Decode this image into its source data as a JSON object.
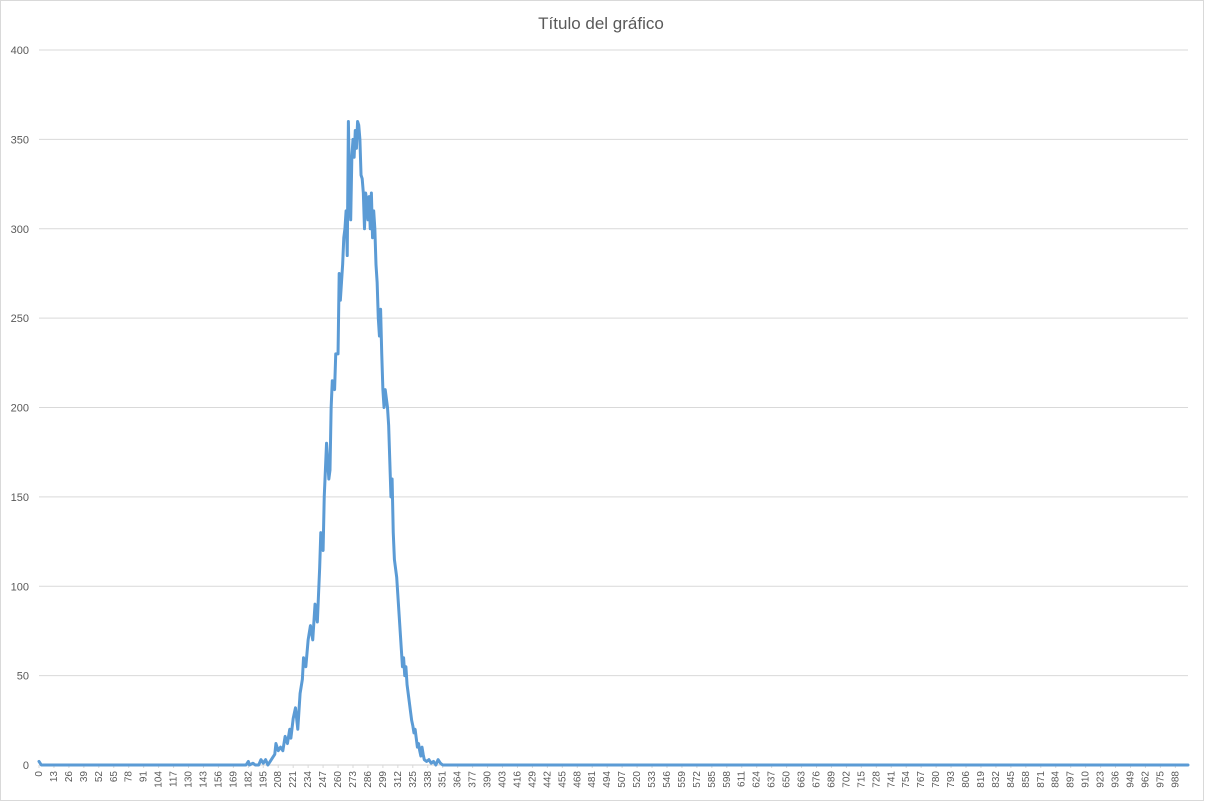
{
  "chart_data": {
    "type": "line",
    "title": "Título del gráfico",
    "xlabel": "",
    "ylabel": "",
    "ylim": [
      0,
      400
    ],
    "yticks": [
      0,
      50,
      100,
      150,
      200,
      250,
      300,
      350,
      400
    ],
    "grid": true,
    "legend": "none",
    "x_range": [
      0,
      999
    ],
    "x_tick_step": 13,
    "x_tick_labels": [
      "0",
      "13",
      "26",
      "39",
      "52",
      "65",
      "78",
      "91",
      "104",
      "117",
      "130",
      "143",
      "156",
      "169",
      "182",
      "195",
      "208",
      "221",
      "234",
      "247",
      "260",
      "273",
      "286",
      "299",
      "312",
      "325",
      "338",
      "351",
      "364",
      "377",
      "390",
      "403",
      "416",
      "429",
      "442",
      "455",
      "468",
      "481",
      "494",
      "507",
      "520",
      "533",
      "546",
      "559",
      "572",
      "585",
      "598",
      "611",
      "624",
      "637",
      "650",
      "663",
      "676",
      "689",
      "702",
      "715",
      "728",
      "741",
      "754",
      "767",
      "780",
      "793",
      "806",
      "819",
      "832",
      "845",
      "858",
      "871",
      "884",
      "897",
      "910",
      "923",
      "936",
      "949",
      "962",
      "975",
      "988"
    ],
    "series_color": "#5b9bd5",
    "gridline_color": "#d9d9d9",
    "series": [
      {
        "points": [
          [
            0,
            2
          ],
          [
            2,
            0
          ],
          [
            180,
            0
          ],
          [
            182,
            2
          ],
          [
            183,
            0
          ],
          [
            186,
            1
          ],
          [
            188,
            0
          ],
          [
            191,
            0
          ],
          [
            193,
            3
          ],
          [
            195,
            1
          ],
          [
            197,
            3
          ],
          [
            199,
            0
          ],
          [
            201,
            2
          ],
          [
            203,
            4
          ],
          [
            205,
            6
          ],
          [
            206,
            12
          ],
          [
            208,
            8
          ],
          [
            210,
            10
          ],
          [
            212,
            8
          ],
          [
            214,
            16
          ],
          [
            216,
            12
          ],
          [
            218,
            20
          ],
          [
            219,
            15
          ],
          [
            221,
            26
          ],
          [
            223,
            32
          ],
          [
            225,
            20
          ],
          [
            227,
            40
          ],
          [
            229,
            48
          ],
          [
            230,
            60
          ],
          [
            232,
            55
          ],
          [
            234,
            70
          ],
          [
            236,
            78
          ],
          [
            238,
            70
          ],
          [
            240,
            90
          ],
          [
            242,
            80
          ],
          [
            244,
            110
          ],
          [
            245,
            130
          ],
          [
            247,
            120
          ],
          [
            248,
            150
          ],
          [
            250,
            180
          ],
          [
            252,
            160
          ],
          [
            253,
            165
          ],
          [
            254,
            200
          ],
          [
            255,
            215
          ],
          [
            257,
            210
          ],
          [
            258,
            230
          ],
          [
            260,
            230
          ],
          [
            261,
            275
          ],
          [
            262,
            260
          ],
          [
            263,
            270
          ],
          [
            264,
            280
          ],
          [
            265,
            295
          ],
          [
            266,
            300
          ],
          [
            267,
            310
          ],
          [
            268,
            285
          ],
          [
            269,
            360
          ],
          [
            270,
            320
          ],
          [
            271,
            305
          ],
          [
            272,
            340
          ],
          [
            273,
            350
          ],
          [
            274,
            340
          ],
          [
            275,
            355
          ],
          [
            276,
            345
          ],
          [
            277,
            360
          ],
          [
            278,
            358
          ],
          [
            279,
            350
          ],
          [
            280,
            330
          ],
          [
            281,
            328
          ],
          [
            282,
            320
          ],
          [
            283,
            300
          ],
          [
            284,
            320
          ],
          [
            285,
            315
          ],
          [
            286,
            305
          ],
          [
            287,
            318
          ],
          [
            288,
            300
          ],
          [
            289,
            320
          ],
          [
            290,
            295
          ],
          [
            291,
            310
          ],
          [
            292,
            300
          ],
          [
            293,
            280
          ],
          [
            294,
            270
          ],
          [
            295,
            250
          ],
          [
            296,
            240
          ],
          [
            297,
            255
          ],
          [
            298,
            230
          ],
          [
            299,
            210
          ],
          [
            300,
            200
          ],
          [
            301,
            210
          ],
          [
            302,
            205
          ],
          [
            303,
            200
          ],
          [
            304,
            190
          ],
          [
            305,
            170
          ],
          [
            306,
            150
          ],
          [
            307,
            160
          ],
          [
            308,
            130
          ],
          [
            309,
            115
          ],
          [
            310,
            110
          ],
          [
            311,
            105
          ],
          [
            312,
            95
          ],
          [
            313,
            85
          ],
          [
            314,
            75
          ],
          [
            315,
            65
          ],
          [
            316,
            55
          ],
          [
            317,
            60
          ],
          [
            318,
            50
          ],
          [
            319,
            55
          ],
          [
            320,
            45
          ],
          [
            321,
            40
          ],
          [
            322,
            35
          ],
          [
            323,
            30
          ],
          [
            324,
            25
          ],
          [
            325,
            22
          ],
          [
            326,
            18
          ],
          [
            327,
            20
          ],
          [
            328,
            15
          ],
          [
            329,
            10
          ],
          [
            330,
            12
          ],
          [
            331,
            8
          ],
          [
            332,
            5
          ],
          [
            333,
            10
          ],
          [
            334,
            6
          ],
          [
            335,
            3
          ],
          [
            337,
            2
          ],
          [
            339,
            3
          ],
          [
            341,
            1
          ],
          [
            343,
            2
          ],
          [
            345,
            0
          ],
          [
            347,
            3
          ],
          [
            349,
            1
          ],
          [
            351,
            0
          ],
          [
            999,
            0
          ]
        ]
      }
    ]
  }
}
